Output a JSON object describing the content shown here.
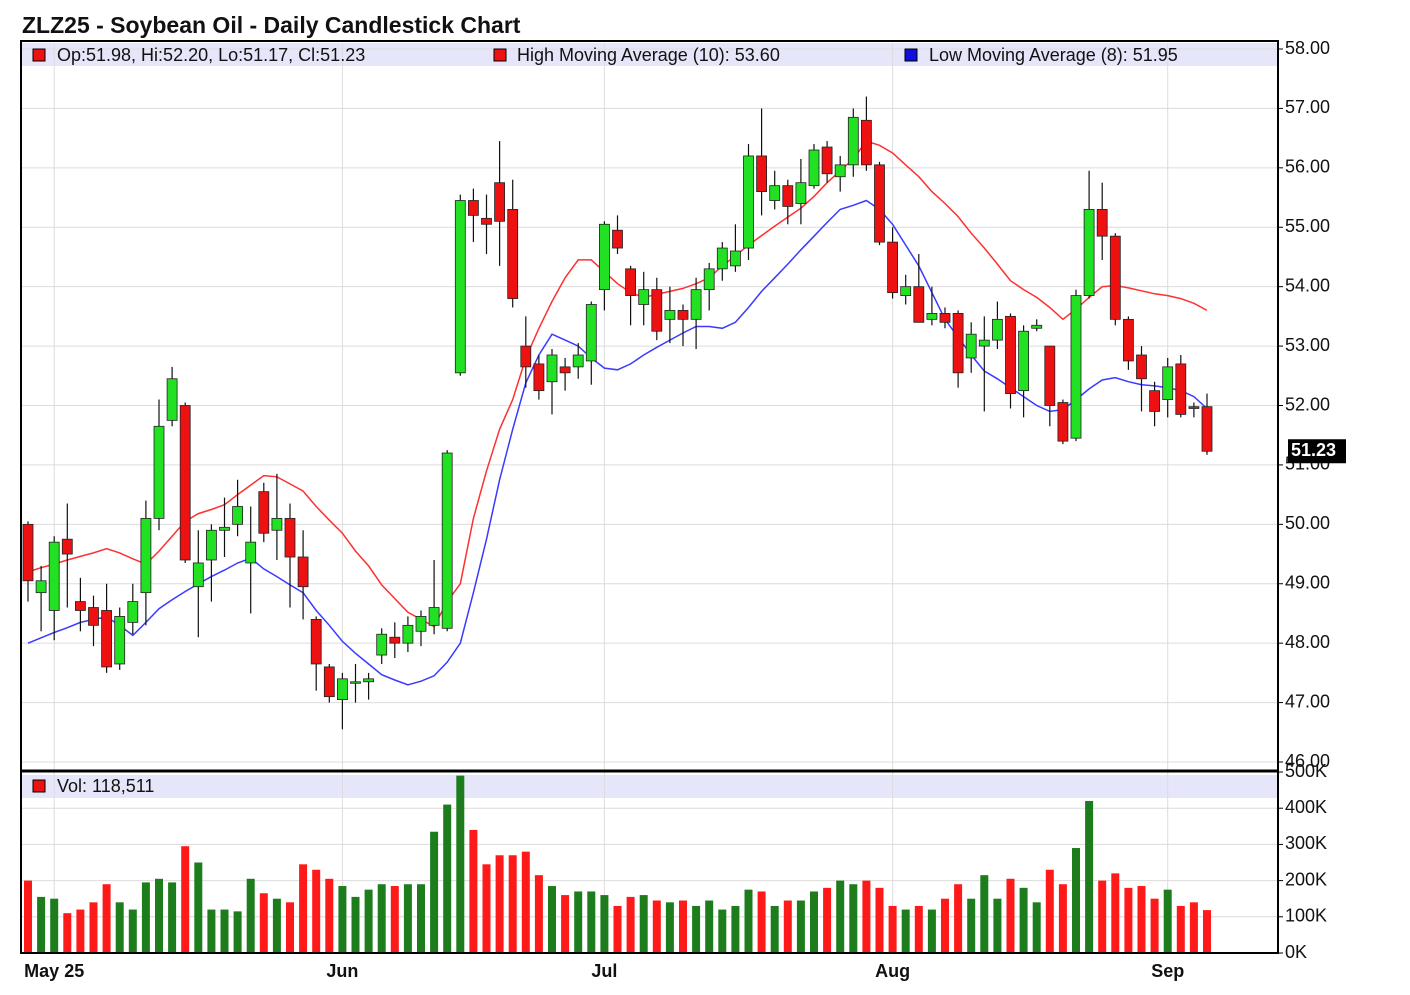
{
  "chart_data": {
    "type": "candlestick",
    "title": "ZLZ25 - Soybean Oil - Daily Candlestick Chart",
    "ohlc_legend": "Op:51.98, Hi:52.20, Lo:51.17, Cl:51.23",
    "ohlc_legend_color": "#ee1111",
    "categories": [
      null,
      null,
      "May 25",
      null,
      null,
      null,
      null,
      null,
      null,
      null,
      null,
      null,
      null,
      null,
      null,
      null,
      null,
      null,
      null,
      null,
      null,
      null,
      null,
      null,
      "Jun",
      null,
      null,
      null,
      null,
      null,
      null,
      null,
      null,
      null,
      null,
      null,
      null,
      null,
      null,
      null,
      null,
      null,
      null,
      null,
      "Jul",
      null,
      null,
      null,
      null,
      null,
      null,
      null,
      null,
      null,
      null,
      null,
      null,
      null,
      null,
      null,
      null,
      null,
      null,
      null,
      null,
      null,
      "Aug",
      null,
      null,
      null,
      null,
      null,
      null,
      null,
      null,
      null,
      null,
      null,
      null,
      null,
      null,
      null,
      null,
      null,
      null,
      null,
      null,
      "Sep",
      null,
      null,
      null
    ],
    "open": [
      50.0,
      48.85,
      48.55,
      49.75,
      48.7,
      48.6,
      48.55,
      47.65,
      48.35,
      48.85,
      50.1,
      51.75,
      52.0,
      48.95,
      49.4,
      49.9,
      50.0,
      49.35,
      50.55,
      49.9,
      50.1,
      49.45,
      48.4,
      47.6,
      47.05,
      47.35,
      47.35,
      47.8,
      48.1,
      48.0,
      48.2,
      48.3,
      48.25,
      52.55,
      55.45,
      55.15,
      55.75,
      55.3,
      53.0,
      52.7,
      52.4,
      52.65,
      52.65,
      52.75,
      53.95,
      54.95,
      54.3,
      53.7,
      53.95,
      53.45,
      53.6,
      53.45,
      53.95,
      54.3,
      54.35,
      54.65,
      56.2,
      55.45,
      55.7,
      55.4,
      55.7,
      56.35,
      55.85,
      56.05,
      56.8,
      56.05,
      54.75,
      53.85,
      54.0,
      53.45,
      53.55,
      53.55,
      52.8,
      53.0,
      53.1,
      53.5,
      52.25,
      53.3,
      53.0,
      52.05,
      51.45,
      53.85,
      55.3,
      54.85,
      53.45,
      52.85,
      52.25,
      52.1,
      52.7,
      51.98,
      51.98
    ],
    "high": [
      50.05,
      49.3,
      49.8,
      50.35,
      49.1,
      48.8,
      49.0,
      48.6,
      49.0,
      50.4,
      52.1,
      52.65,
      52.05,
      49.9,
      50.0,
      50.45,
      50.75,
      50.3,
      50.7,
      50.85,
      50.35,
      49.9,
      48.45,
      47.65,
      47.5,
      47.65,
      47.5,
      48.25,
      48.35,
      48.45,
      48.55,
      49.4,
      51.25,
      55.55,
      55.65,
      55.55,
      56.45,
      55.8,
      53.5,
      52.85,
      52.95,
      52.8,
      53.05,
      53.75,
      55.1,
      55.2,
      54.35,
      54.25,
      54.15,
      54.0,
      53.7,
      54.15,
      54.4,
      54.75,
      55.05,
      56.4,
      57.0,
      55.95,
      55.8,
      56.15,
      56.4,
      56.45,
      56.2,
      57.0,
      57.2,
      56.1,
      55.0,
      54.2,
      54.55,
      54.0,
      53.65,
      53.6,
      53.4,
      53.5,
      53.75,
      53.55,
      53.35,
      53.45,
      53.0,
      52.1,
      53.95,
      55.95,
      55.75,
      54.9,
      53.5,
      53.0,
      52.4,
      52.8,
      52.85,
      52.05,
      52.2
    ],
    "low": [
      48.7,
      48.2,
      48.05,
      48.6,
      48.2,
      47.95,
      47.5,
      47.55,
      48.15,
      48.3,
      49.9,
      51.65,
      49.35,
      48.1,
      48.7,
      49.45,
      49.8,
      48.5,
      49.7,
      49.4,
      48.6,
      48.4,
      47.2,
      47.0,
      46.55,
      47.0,
      47.05,
      47.65,
      47.75,
      47.85,
      47.95,
      48.15,
      48.2,
      52.5,
      54.75,
      54.55,
      54.35,
      53.65,
      52.3,
      52.1,
      51.85,
      52.25,
      52.45,
      52.35,
      53.6,
      54.55,
      53.35,
      53.35,
      53.1,
      53.05,
      53.0,
      52.95,
      53.6,
      54.1,
      54.25,
      54.45,
      55.2,
      55.3,
      55.05,
      55.05,
      55.65,
      55.75,
      55.6,
      55.85,
      55.95,
      54.7,
      53.8,
      53.7,
      53.4,
      53.35,
      53.3,
      52.3,
      52.55,
      51.9,
      52.95,
      51.95,
      51.8,
      53.25,
      51.65,
      51.35,
      51.4,
      53.8,
      54.45,
      53.35,
      52.6,
      51.9,
      51.65,
      51.8,
      51.8,
      51.8,
      51.17
    ],
    "close": [
      49.05,
      49.05,
      49.7,
      49.5,
      48.55,
      48.3,
      47.6,
      48.45,
      48.7,
      50.1,
      51.65,
      52.45,
      49.4,
      49.35,
      49.9,
      49.95,
      50.3,
      49.7,
      49.85,
      50.1,
      49.45,
      48.95,
      47.65,
      47.1,
      47.4,
      47.35,
      47.4,
      48.15,
      48.0,
      48.3,
      48.45,
      48.6,
      51.2,
      55.45,
      55.2,
      55.05,
      55.1,
      53.8,
      52.65,
      52.25,
      52.85,
      52.55,
      52.85,
      53.7,
      55.05,
      54.65,
      53.85,
      53.95,
      53.25,
      53.6,
      53.45,
      53.95,
      54.3,
      54.65,
      54.6,
      56.2,
      55.6,
      55.7,
      55.35,
      55.75,
      56.3,
      55.9,
      56.05,
      56.85,
      56.05,
      54.75,
      53.9,
      54.0,
      53.4,
      53.55,
      53.4,
      52.55,
      53.2,
      53.1,
      53.45,
      52.2,
      53.25,
      53.35,
      52.0,
      51.4,
      53.85,
      55.3,
      54.85,
      53.45,
      52.75,
      52.45,
      51.9,
      52.65,
      51.85,
      51.95,
      51.23
    ],
    "up_color": "#22e022",
    "down_color": "#ee1111",
    "moving_averages": [
      {
        "name": "High Moving Average (10): 53.60",
        "color": "#ff3030",
        "values": [
          49.2,
          49.27,
          49.33,
          49.4,
          49.46,
          49.52,
          49.59,
          49.52,
          49.42,
          49.33,
          49.55,
          49.8,
          50.05,
          50.18,
          50.25,
          50.33,
          50.5,
          50.66,
          50.82,
          50.8,
          50.68,
          50.56,
          50.3,
          50.07,
          49.85,
          49.55,
          49.3,
          48.98,
          48.75,
          48.52,
          48.4,
          48.28,
          48.7,
          49.0,
          50.1,
          50.9,
          51.6,
          52.1,
          52.8,
          53.3,
          53.75,
          54.15,
          54.45,
          54.45,
          54.25,
          54.05,
          53.9,
          53.82,
          53.87,
          53.92,
          53.97,
          54.05,
          54.15,
          54.35,
          54.52,
          54.7,
          54.86,
          55.02,
          55.17,
          55.32,
          55.52,
          55.75,
          55.95,
          56.15,
          56.45,
          56.38,
          56.25,
          56.05,
          55.85,
          55.6,
          55.4,
          55.18,
          54.9,
          54.65,
          54.38,
          54.1,
          53.95,
          53.82,
          53.65,
          53.45,
          53.62,
          53.82,
          54.0,
          54.02,
          53.98,
          53.93,
          53.88,
          53.85,
          53.8,
          53.72,
          53.6
        ]
      },
      {
        "name": "Low Moving Average (8): 51.95",
        "color": "#3a3aff",
        "values": [
          48.0,
          48.09,
          48.18,
          48.26,
          48.35,
          48.4,
          48.44,
          48.3,
          48.13,
          48.35,
          48.58,
          48.73,
          48.87,
          49.0,
          49.12,
          49.23,
          49.35,
          49.43,
          49.25,
          49.12,
          48.98,
          48.85,
          48.55,
          48.3,
          48.03,
          47.83,
          47.65,
          47.47,
          47.38,
          47.3,
          47.36,
          47.45,
          47.68,
          48.0,
          48.85,
          49.75,
          50.75,
          51.6,
          52.38,
          52.85,
          53.2,
          53.1,
          53.0,
          52.8,
          52.63,
          52.6,
          52.7,
          52.85,
          52.98,
          53.1,
          53.22,
          53.33,
          53.33,
          53.3,
          53.4,
          53.65,
          53.92,
          54.15,
          54.38,
          54.62,
          54.85,
          55.08,
          55.3,
          55.37,
          55.45,
          55.3,
          55.05,
          54.7,
          54.35,
          53.9,
          53.45,
          53.15,
          52.85,
          52.58,
          52.45,
          52.3,
          52.15,
          52.0,
          51.9,
          51.93,
          52.1,
          52.28,
          52.43,
          52.47,
          52.4,
          52.35,
          52.33,
          52.3,
          52.25,
          52.15,
          51.95
        ]
      }
    ],
    "legend_square_colors": [
      "#ee1111",
      "#1010dd"
    ],
    "ylim": [
      46,
      58
    ],
    "yticks": [
      {
        "value": 46,
        "label": "46.00"
      },
      {
        "value": 47,
        "label": "47.00"
      },
      {
        "value": 48,
        "label": "48.00"
      },
      {
        "value": 49,
        "label": "49.00"
      },
      {
        "value": 50,
        "label": "50.00"
      },
      {
        "value": 51,
        "label": "51.00"
      },
      {
        "value": 52,
        "label": "52.00"
      },
      {
        "value": 53,
        "label": "53.00"
      },
      {
        "value": 54,
        "label": "54.00"
      },
      {
        "value": 55,
        "label": "55.00"
      },
      {
        "value": 56,
        "label": "56.00"
      },
      {
        "value": 57,
        "label": "57.00"
      },
      {
        "value": 58,
        "label": "58.00"
      }
    ],
    "last_label": "51.23",
    "grid": true,
    "volume": {
      "legend": "Vol: 118,511",
      "legend_color": "#ee1111",
      "up_color": "#1d7d1d",
      "down_color": "#ff1a1a",
      "values": [
        200000,
        155000,
        150000,
        110000,
        120000,
        140000,
        190000,
        140000,
        120000,
        195000,
        205000,
        195000,
        295000,
        250000,
        120000,
        120000,
        115000,
        205000,
        165000,
        150000,
        140000,
        245000,
        230000,
        205000,
        185000,
        155000,
        175000,
        190000,
        185000,
        190000,
        190000,
        335000,
        410000,
        490000,
        340000,
        245000,
        270000,
        270000,
        280000,
        215000,
        185000,
        160000,
        170000,
        170000,
        160000,
        130000,
        155000,
        160000,
        145000,
        140000,
        145000,
        130000,
        145000,
        120000,
        130000,
        175000,
        170000,
        130000,
        145000,
        145000,
        170000,
        180000,
        200000,
        190000,
        200000,
        180000,
        130000,
        120000,
        130000,
        120000,
        150000,
        190000,
        150000,
        215000,
        150000,
        205000,
        180000,
        140000,
        230000,
        190000,
        290000,
        420000,
        200000,
        220000,
        180000,
        185000,
        150000,
        175000,
        130000,
        140000,
        118511
      ],
      "ylim": [
        0,
        500000
      ],
      "yticks": [
        {
          "value": 0,
          "label": "0K"
        },
        {
          "value": 100000,
          "label": "100K"
        },
        {
          "value": 200000,
          "label": "200K"
        },
        {
          "value": 300000,
          "label": "300K"
        },
        {
          "value": 400000,
          "label": "400K"
        },
        {
          "value": 500000,
          "label": "500K"
        }
      ]
    }
  }
}
